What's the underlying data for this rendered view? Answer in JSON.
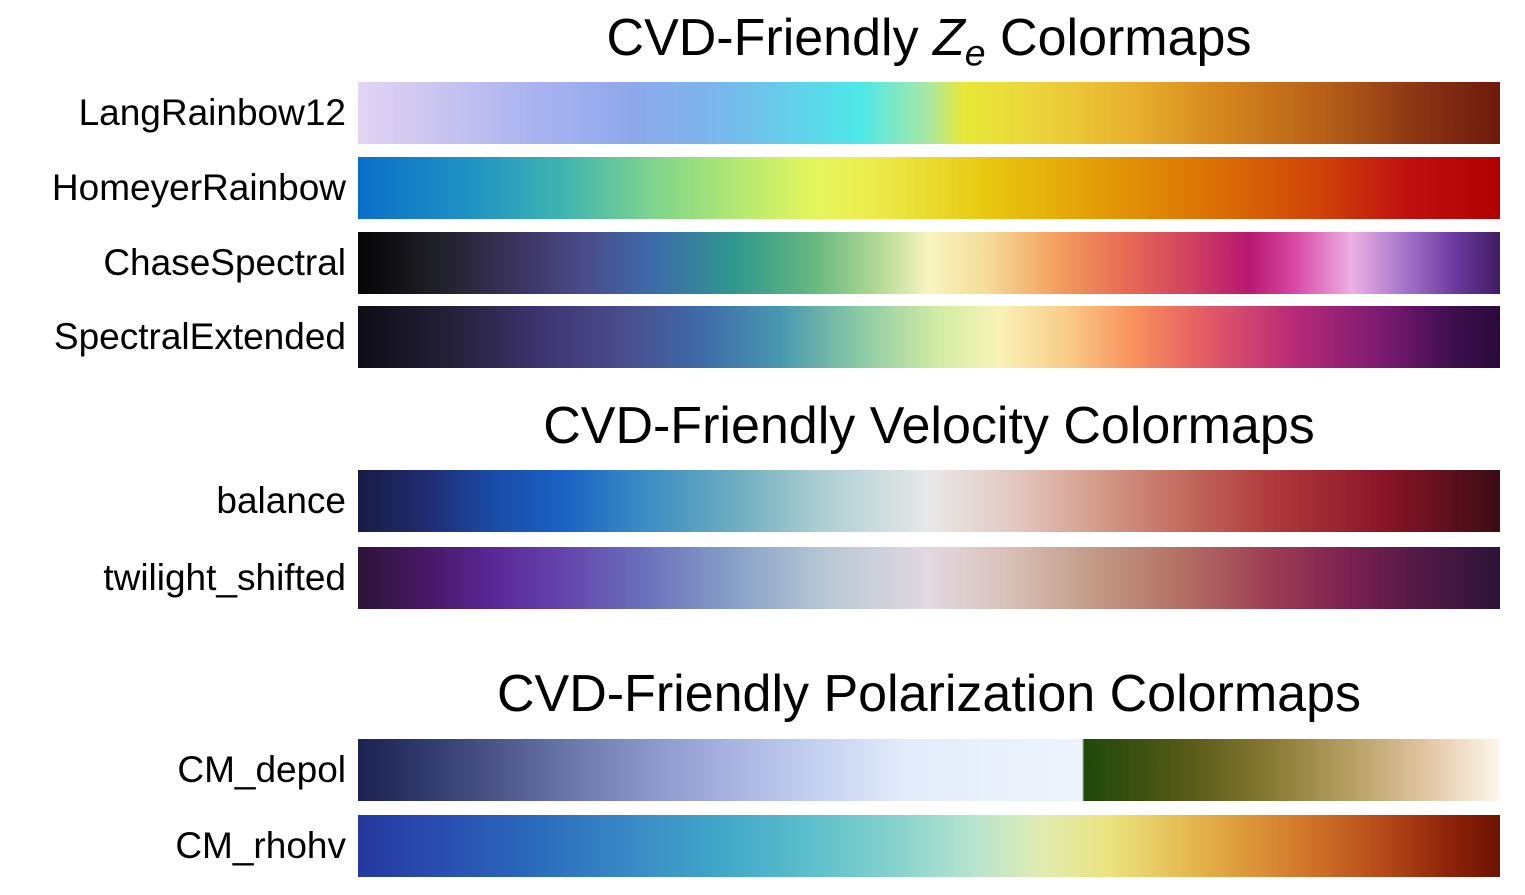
{
  "sections": {
    "ze": {
      "title_prefix": "CVD-Friendly ",
      "title_var": "Z",
      "title_sub": "e",
      "title_suffix": " Colormaps"
    },
    "velocity": {
      "title": "CVD-Friendly Velocity Colormaps"
    },
    "polarization": {
      "title": "CVD-Friendly Polarization Colormaps"
    }
  },
  "colormaps": {
    "LangRainbow12": "LangRainbow12",
    "HomeyerRainbow": "HomeyerRainbow",
    "ChaseSpectral": "ChaseSpectral",
    "SpectralExtended": "SpectralExtended",
    "balance": "balance",
    "twilight_shifted": "twilight_shifted",
    "CM_depol": "CM_depol",
    "CM_rhohv": "CM_rhohv"
  }
}
